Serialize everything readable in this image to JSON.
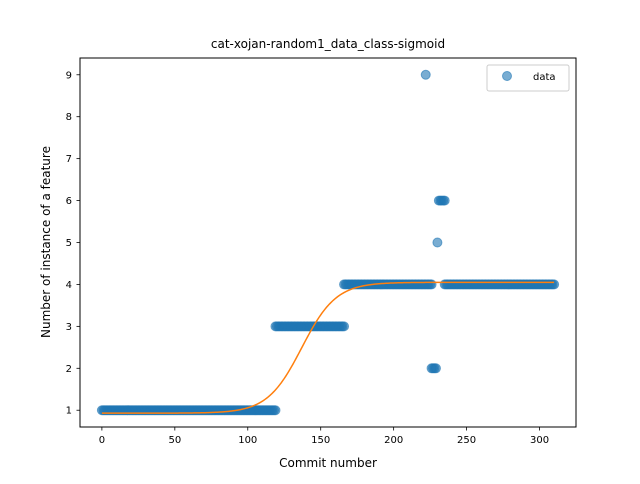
{
  "chart_data": {
    "type": "scatter",
    "title": "cat-xojan-random1_data_class-sigmoid",
    "xlabel": "Commit number",
    "ylabel": "Number of instance of a feature",
    "xlim": [
      -15,
      325
    ],
    "ylim": [
      0.6,
      9.4
    ],
    "xticks": [
      0,
      50,
      100,
      150,
      200,
      250,
      300
    ],
    "yticks": [
      1,
      2,
      3,
      4,
      5,
      6,
      7,
      8,
      9
    ],
    "grid": false,
    "legend_position": "top-right",
    "series": [
      {
        "name": "data",
        "kind": "scatter",
        "color": "#1f77b4",
        "segments": [
          {
            "x_from": 0,
            "x_to": 119,
            "y": 1
          },
          {
            "x_from": 119,
            "x_to": 166,
            "y": 3
          },
          {
            "x_from": 166,
            "x_to": 226,
            "y": 4
          },
          {
            "x_from": 226,
            "x_to": 229,
            "y": 2
          },
          {
            "x_from": 231,
            "x_to": 235,
            "y": 6
          },
          {
            "x_from": 235,
            "x_to": 310,
            "y": 4
          }
        ],
        "extra_points": [
          {
            "x": 222,
            "y": 9
          },
          {
            "x": 230,
            "y": 5
          }
        ]
      },
      {
        "name": "",
        "kind": "line",
        "color": "#ff7f0e",
        "model": "sigmoid",
        "params": {
          "lower": 0.93,
          "upper": 4.05,
          "midpoint": 137,
          "rate": 0.085
        },
        "x_range": [
          0,
          310
        ]
      }
    ]
  }
}
